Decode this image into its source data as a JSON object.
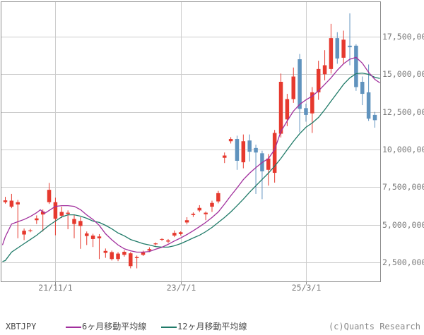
{
  "symbol": "XBTJPY",
  "copyright": "(c)Quants Research",
  "legend": {
    "ma6_label": "6ヶ月移動平均線",
    "ma12_label": "12ヶ月移動平均線"
  },
  "colors": {
    "up_candle": "#e6392e",
    "down_candle": "#6093be",
    "ma6_line": "#a12f9d",
    "ma12_line": "#1f7a68",
    "grid": "#cccccc",
    "border": "#8c8c8c",
    "axis_text": "#7a7a7a",
    "legend_text": "#4a4a4a",
    "copyright_text": "#8a8a8a"
  },
  "chart_data": {
    "type": "candlestick",
    "title": "",
    "ylim": [
      1210000,
      19820000
    ],
    "grid": true,
    "y_axis_ticks": [
      {
        "value": 2500000,
        "label": "2,500,000"
      },
      {
        "value": 5000000,
        "label": "5,000,000"
      },
      {
        "value": 7500000,
        "label": "7,500,000"
      },
      {
        "value": 10000000,
        "label": "10,000,000"
      },
      {
        "value": 12500000,
        "label": "12,500,000"
      },
      {
        "value": 15000000,
        "label": "15,000,000"
      },
      {
        "value": 17500000,
        "label": "17,500,000"
      }
    ],
    "x_axis_ticks": [
      {
        "index": 8,
        "label": "21/11/1"
      },
      {
        "index": 28,
        "label": "23/7/1"
      },
      {
        "index": 48,
        "label": "25/3/1"
      }
    ],
    "candles_ohlc": [
      [
        6500000,
        6850000,
        6400000,
        6620000
      ],
      [
        6200000,
        7050000,
        6100000,
        6600000
      ],
      [
        6350000,
        6650000,
        4100000,
        6500000
      ],
      [
        4350000,
        4750000,
        3980000,
        4600000
      ],
      [
        4580000,
        4720000,
        4500000,
        4630000
      ],
      [
        5300000,
        5620000,
        5050000,
        5420000
      ],
      [
        5680000,
        6020000,
        4550000,
        5880000
      ],
      [
        6500000,
        7780000,
        6380000,
        7320000
      ],
      [
        5400000,
        6800000,
        4300000,
        6500000
      ],
      [
        5600000,
        6200000,
        5450000,
        5850000
      ],
      [
        5720000,
        5950000,
        4700000,
        5800000
      ],
      [
        5050000,
        5650000,
        4100000,
        5380000
      ],
      [
        4920000,
        5500000,
        3400000,
        5250000
      ],
      [
        4250000,
        4550000,
        3650000,
        4420000
      ],
      [
        4050000,
        4400000,
        3520000,
        4280000
      ],
      [
        4100000,
        4380000,
        2720000,
        4220000
      ],
      [
        3130000,
        3420000,
        2800000,
        3260000
      ],
      [
        2720000,
        3280000,
        2620000,
        3180000
      ],
      [
        2720000,
        3180000,
        2580000,
        3080000
      ],
      [
        3000000,
        3300000,
        2880000,
        3200000
      ],
      [
        2250000,
        3180000,
        2100000,
        3100000
      ],
      [
        2780000,
        2950000,
        2100000,
        2850000
      ],
      [
        3000000,
        3280000,
        2920000,
        3150000
      ],
      [
        3280000,
        3500000,
        3180000,
        3380000
      ],
      [
        3700000,
        3820000,
        3620000,
        3760000
      ],
      [
        4000000,
        4100000,
        3920000,
        4050000
      ],
      [
        3880000,
        4050000,
        3780000,
        3960000
      ],
      [
        4280000,
        4620000,
        4180000,
        4460000
      ],
      [
        4380000,
        4560000,
        4280000,
        4500000
      ],
      [
        5150000,
        5500000,
        5020000,
        5300000
      ],
      [
        5650000,
        5820000,
        5520000,
        5730000
      ],
      [
        5950000,
        6300000,
        5850000,
        6120000
      ],
      [
        5700000,
        5880000,
        5300000,
        5800000
      ],
      [
        6200000,
        6600000,
        5850000,
        6450000
      ],
      [
        6550000,
        7250000,
        6420000,
        7100000
      ],
      [
        9450000,
        9800000,
        9100000,
        9600000
      ],
      [
        10550000,
        10820000,
        10400000,
        10700000
      ],
      [
        10700000,
        10920000,
        8650000,
        9250000
      ],
      [
        9150000,
        11000000,
        8750000,
        10550000
      ],
      [
        10600000,
        11000000,
        9200000,
        9850000
      ],
      [
        10100000,
        10320000,
        7050000,
        9800000
      ],
      [
        9750000,
        9920000,
        6700000,
        8550000
      ],
      [
        8650000,
        9700000,
        7600000,
        9400000
      ],
      [
        8450000,
        11300000,
        7800000,
        11100000
      ],
      [
        11050000,
        15050000,
        10800000,
        14500000
      ],
      [
        12000000,
        13700000,
        11550000,
        13350000
      ],
      [
        13350000,
        15450000,
        13100000,
        14850000
      ],
      [
        16000000,
        16350000,
        11150000,
        12700000
      ],
      [
        12750000,
        13050000,
        11850000,
        12300000
      ],
      [
        12400000,
        14150000,
        11100000,
        13800000
      ],
      [
        13800000,
        15900000,
        13300000,
        15350000
      ],
      [
        15000000,
        16600000,
        14600000,
        15600000
      ],
      [
        15350000,
        18350000,
        15050000,
        17400000
      ],
      [
        17400000,
        17800000,
        15700000,
        16050000
      ],
      [
        16100000,
        17900000,
        15700000,
        17300000
      ],
      [
        16900000,
        19050000,
        15600000,
        16800000
      ],
      [
        16900000,
        17000000,
        13900000,
        14150000
      ],
      [
        14500000,
        14850000,
        12950000,
        13700000
      ],
      [
        13800000,
        15650000,
        11900000,
        12050000
      ],
      [
        12300000,
        12500000,
        11450000,
        11950000
      ]
    ],
    "series": [
      {
        "name": "6ヶ月移動平均線",
        "points": [
          [
            -0.45,
            3650000
          ],
          [
            0,
            4200000
          ],
          [
            1,
            5050000
          ],
          [
            2,
            5200000
          ],
          [
            3,
            5350000
          ],
          [
            4,
            5550000
          ],
          [
            5,
            5800000
          ],
          [
            5.6,
            5990000
          ],
          [
            6.3,
            5760000
          ],
          [
            7,
            5950000
          ],
          [
            8,
            6220000
          ],
          [
            9,
            6270000
          ],
          [
            10,
            6270000
          ],
          [
            11,
            6220000
          ],
          [
            12,
            6000000
          ],
          [
            13,
            5650000
          ],
          [
            14,
            5350000
          ],
          [
            15,
            4950000
          ],
          [
            16,
            4400000
          ],
          [
            17,
            4000000
          ],
          [
            18,
            3650000
          ],
          [
            19,
            3400000
          ],
          [
            20,
            3270000
          ],
          [
            21,
            3180000
          ],
          [
            22,
            3180000
          ],
          [
            23,
            3220000
          ],
          [
            24,
            3370000
          ],
          [
            25,
            3500000
          ],
          [
            26,
            3700000
          ],
          [
            27,
            3920000
          ],
          [
            28,
            4120000
          ],
          [
            29,
            4350000
          ],
          [
            30,
            4600000
          ],
          [
            31,
            4870000
          ],
          [
            32,
            5150000
          ],
          [
            33,
            5480000
          ],
          [
            34,
            5850000
          ],
          [
            35,
            6370000
          ],
          [
            36,
            6930000
          ],
          [
            37,
            7450000
          ],
          [
            38,
            8000000
          ],
          [
            39,
            8430000
          ],
          [
            40,
            8800000
          ],
          [
            41,
            9130000
          ],
          [
            42,
            9400000
          ],
          [
            43,
            10000000
          ],
          [
            44,
            11200000
          ],
          [
            45,
            11900000
          ],
          [
            46,
            12550000
          ],
          [
            47,
            13000000
          ],
          [
            48,
            13300000
          ],
          [
            49,
            13550000
          ],
          [
            50,
            13900000
          ],
          [
            51,
            14330000
          ],
          [
            52,
            14760000
          ],
          [
            53,
            15270000
          ],
          [
            54,
            15700000
          ],
          [
            55,
            16000000
          ],
          [
            56,
            16120000
          ],
          [
            57,
            15740000
          ],
          [
            58,
            15130000
          ],
          [
            59,
            14660000
          ],
          [
            59.8,
            14430000
          ]
        ]
      },
      {
        "name": "12ヶ月移動平均線",
        "points": [
          [
            -0.45,
            2550000
          ],
          [
            0,
            2620000
          ],
          [
            1,
            3180000
          ],
          [
            2,
            3460000
          ],
          [
            3,
            3740000
          ],
          [
            4,
            4020000
          ],
          [
            5,
            4300000
          ],
          [
            6,
            4630000
          ],
          [
            7,
            4960000
          ],
          [
            8,
            5240000
          ],
          [
            9,
            5520000
          ],
          [
            10,
            5660000
          ],
          [
            11,
            5660000
          ],
          [
            12,
            5570000
          ],
          [
            13,
            5430000
          ],
          [
            14,
            5240000
          ],
          [
            15,
            5150000
          ],
          [
            16,
            4960000
          ],
          [
            17,
            4730000
          ],
          [
            18,
            4450000
          ],
          [
            19,
            4260000
          ],
          [
            20,
            4020000
          ],
          [
            21,
            3880000
          ],
          [
            22,
            3740000
          ],
          [
            23,
            3650000
          ],
          [
            24,
            3550000
          ],
          [
            25,
            3510000
          ],
          [
            26,
            3510000
          ],
          [
            27,
            3600000
          ],
          [
            28,
            3740000
          ],
          [
            29,
            3930000
          ],
          [
            30,
            4120000
          ],
          [
            31,
            4300000
          ],
          [
            32,
            4540000
          ],
          [
            33,
            4820000
          ],
          [
            34,
            5150000
          ],
          [
            35,
            5480000
          ],
          [
            36,
            5850000
          ],
          [
            37,
            6270000
          ],
          [
            38,
            6700000
          ],
          [
            39,
            7160000
          ],
          [
            40,
            7590000
          ],
          [
            41,
            8010000
          ],
          [
            42,
            8430000
          ],
          [
            43,
            8900000
          ],
          [
            44,
            9410000
          ],
          [
            45,
            9980000
          ],
          [
            46,
            10540000
          ],
          [
            47,
            11050000
          ],
          [
            48,
            11480000
          ],
          [
            49,
            11760000
          ],
          [
            50,
            12130000
          ],
          [
            51,
            12650000
          ],
          [
            52,
            13210000
          ],
          [
            53,
            13770000
          ],
          [
            54,
            14330000
          ],
          [
            55,
            14760000
          ],
          [
            56,
            15040000
          ],
          [
            57,
            15080000
          ],
          [
            58,
            14990000
          ],
          [
            59,
            14800000
          ],
          [
            59.8,
            14720000
          ]
        ]
      }
    ]
  }
}
